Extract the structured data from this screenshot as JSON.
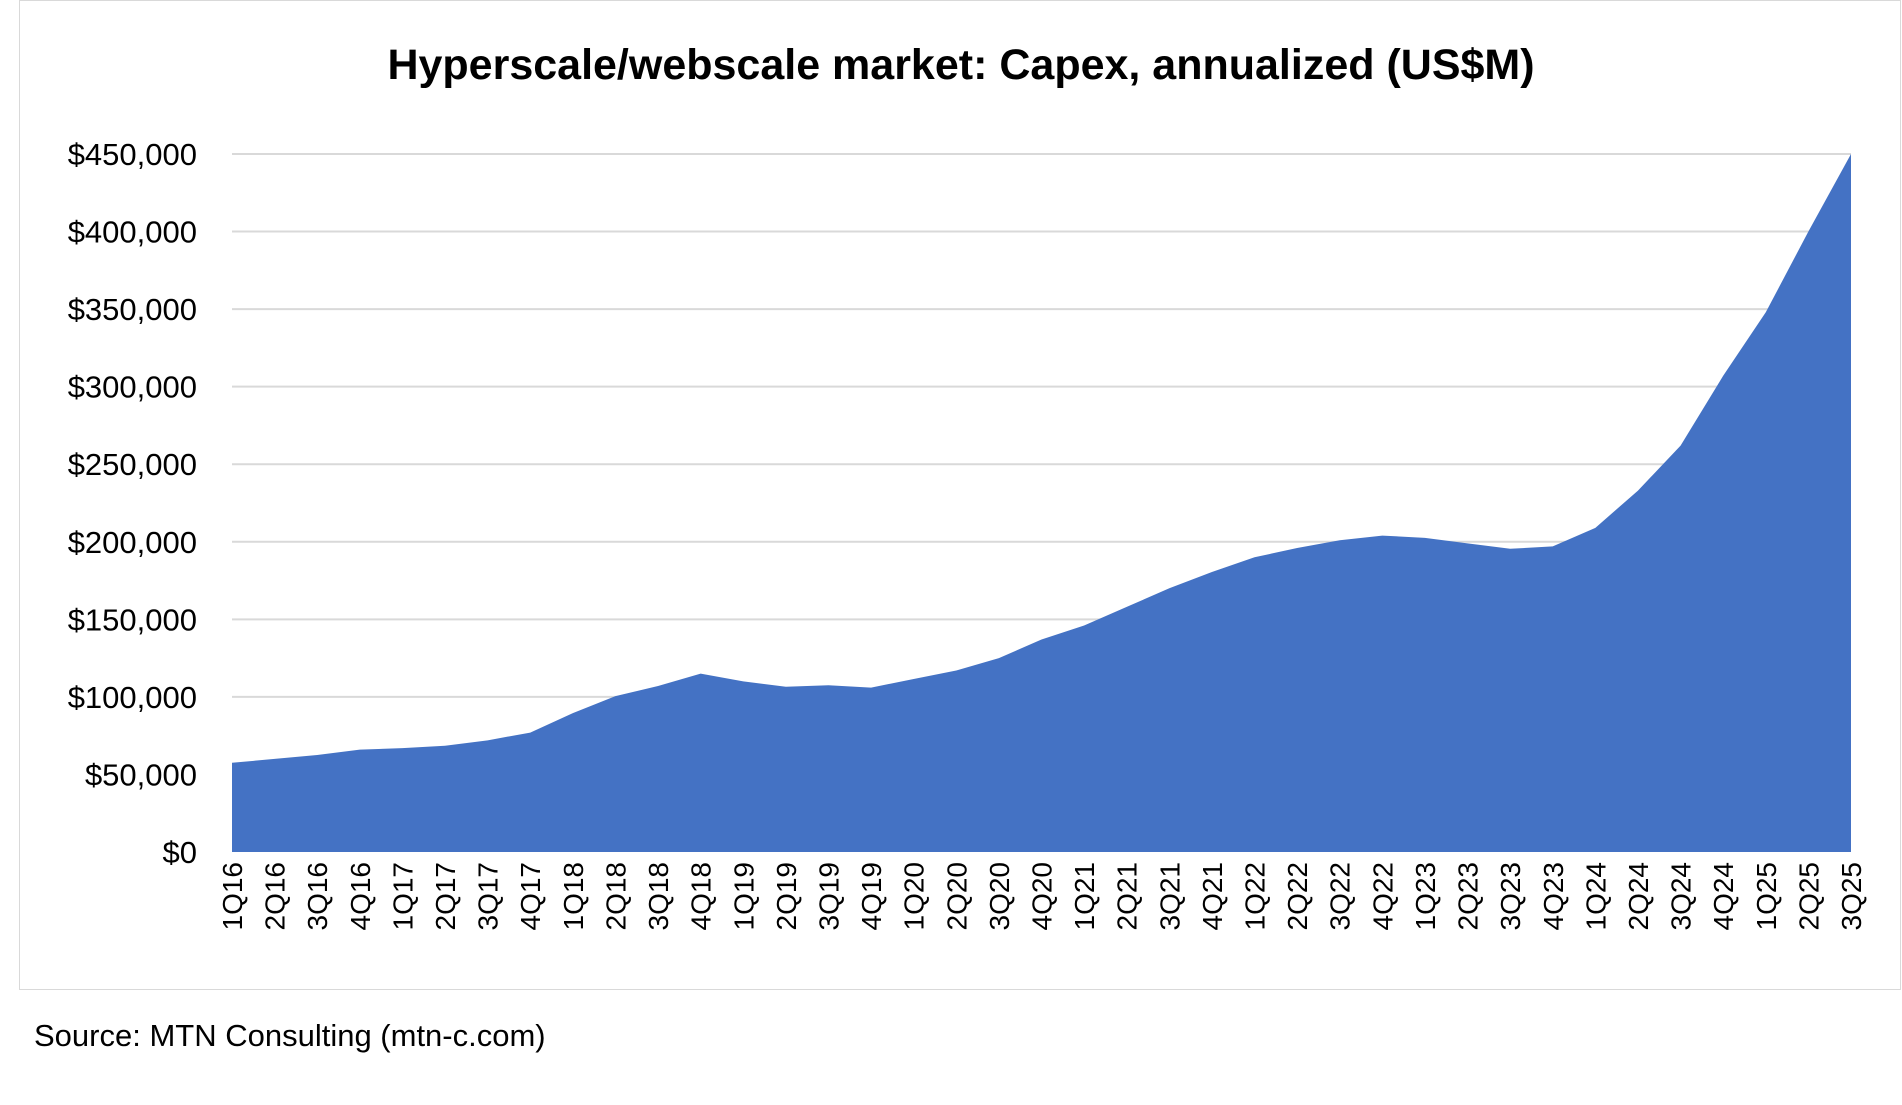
{
  "chart_data": {
    "type": "area",
    "title": "Hyperscale/webscale market: Capex, annualized (US$M)",
    "xlabel": "",
    "ylabel": "",
    "ylim": [
      0,
      450000
    ],
    "yticks": [
      0,
      50000,
      100000,
      150000,
      200000,
      250000,
      300000,
      350000,
      400000,
      450000
    ],
    "ytick_labels": [
      "$0",
      "$50,000",
      "$100,000",
      "$150,000",
      "$200,000",
      "$250,000",
      "$300,000",
      "$350,000",
      "$400,000",
      "$450,000"
    ],
    "grid": true,
    "legend": "none",
    "fill_color": "#4472C4",
    "categories": [
      "1Q16",
      "2Q16",
      "3Q16",
      "4Q16",
      "1Q17",
      "2Q17",
      "3Q17",
      "4Q17",
      "1Q18",
      "2Q18",
      "3Q18",
      "4Q18",
      "1Q19",
      "2Q19",
      "3Q19",
      "4Q19",
      "1Q20",
      "2Q20",
      "3Q20",
      "4Q20",
      "1Q21",
      "2Q21",
      "3Q21",
      "4Q21",
      "1Q22",
      "2Q22",
      "3Q22",
      "4Q22",
      "1Q23",
      "2Q23",
      "3Q23",
      "4Q23",
      "1Q24",
      "2Q24",
      "3Q24",
      "4Q24",
      "1Q25",
      "2Q25",
      "3Q25"
    ],
    "values": [
      57500,
      60000,
      62500,
      66000,
      67000,
      68500,
      72000,
      77000,
      89500,
      100500,
      107000,
      115000,
      110000,
      106500,
      107500,
      106000,
      111500,
      117000,
      125000,
      137000,
      146000,
      158000,
      170000,
      180500,
      190000,
      196000,
      201000,
      204000,
      202500,
      199000,
      195500,
      197000,
      209000,
      233000,
      262000,
      307000,
      348000,
      400000,
      450000
    ]
  },
  "source": "Source: MTN Consulting (mtn-c.com)"
}
